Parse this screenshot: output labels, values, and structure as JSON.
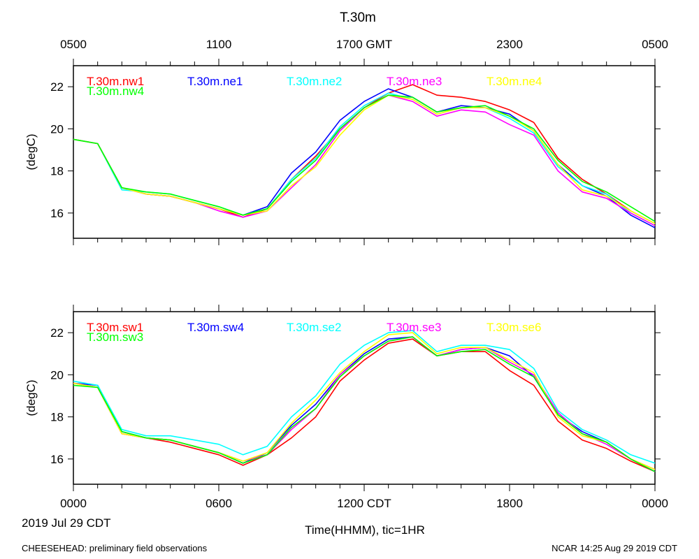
{
  "figure": {
    "title": "T.30m",
    "top_axis_ticks": [
      "0500",
      "1100",
      "1700 GMT",
      "2300",
      "0500"
    ],
    "bottom_axis_ticks": [
      "0000",
      "0600",
      "1200 CDT",
      "1800",
      "0000"
    ],
    "date_label": "2019 Jul 29 CDT",
    "xlabel": "Time(HHMM), tic=1HR",
    "footer_left": "CHEESEHEAD: preliminary field observations",
    "footer_right": "NCAR 14:25 Aug 29 2019 CDT"
  },
  "chart_data": [
    {
      "type": "line",
      "title": "T.30m",
      "xlabel": "Time(HHMM), tic=1HR",
      "ylabel": "(degC)",
      "x_units": "hours since 0000 CDT 2019 Jul 29",
      "xlim": [
        0,
        24
      ],
      "ylim": [
        14.8,
        23
      ],
      "yticks": [
        "16",
        "18",
        "20",
        "22"
      ],
      "x": [
        0,
        1,
        2,
        3,
        4,
        5,
        6,
        7,
        8,
        9,
        10,
        11,
        12,
        13,
        14,
        15,
        16,
        17,
        18,
        19,
        20,
        21,
        22,
        23,
        24
      ],
      "legend_placement": "top-left, in-plot",
      "series": [
        {
          "name": "T.30m.nw1",
          "color": "#ff0000",
          "values": [
            19.5,
            19.3,
            17.2,
            16.9,
            16.8,
            16.5,
            16.2,
            15.8,
            16.2,
            17.6,
            18.7,
            20.0,
            21.0,
            21.7,
            22.1,
            21.6,
            21.5,
            21.3,
            20.9,
            20.3,
            18.6,
            17.6,
            16.9,
            16.1,
            15.5
          ]
        },
        {
          "name": "T.30m.ne1",
          "color": "#0000ff",
          "values": [
            19.5,
            19.3,
            17.2,
            16.9,
            16.8,
            16.5,
            16.2,
            15.9,
            16.3,
            17.9,
            18.9,
            20.4,
            21.3,
            21.9,
            21.5,
            20.8,
            21.1,
            21.0,
            20.7,
            19.9,
            18.3,
            17.3,
            16.8,
            15.9,
            15.3
          ]
        },
        {
          "name": "T.30m.ne2",
          "color": "#00ffff",
          "values": [
            19.5,
            19.3,
            17.1,
            17.0,
            16.9,
            16.6,
            16.3,
            15.9,
            16.2,
            17.6,
            18.6,
            20.1,
            21.1,
            21.7,
            21.4,
            20.7,
            21.0,
            21.0,
            20.5,
            19.8,
            18.2,
            17.3,
            16.9,
            16.0,
            15.4
          ]
        },
        {
          "name": "T.30m.ne3",
          "color": "#ff00ff",
          "values": [
            19.5,
            19.3,
            17.2,
            16.9,
            16.8,
            16.5,
            16.1,
            15.8,
            16.1,
            17.2,
            18.3,
            19.9,
            21.0,
            21.6,
            21.3,
            20.6,
            20.9,
            20.8,
            20.2,
            19.7,
            18.0,
            17.0,
            16.7,
            16.0,
            15.4
          ]
        },
        {
          "name": "T.30m.ne4",
          "color": "#ffff00",
          "values": [
            19.5,
            19.3,
            17.2,
            16.9,
            16.8,
            16.5,
            16.2,
            15.9,
            16.1,
            17.3,
            18.2,
            19.7,
            20.9,
            21.6,
            21.4,
            20.7,
            21.0,
            21.0,
            20.6,
            19.9,
            18.3,
            17.1,
            16.8,
            16.1,
            15.5
          ]
        },
        {
          "name": "T.30m.nw4",
          "color": "#00ff00",
          "values": [
            19.5,
            19.3,
            17.2,
            17.0,
            16.9,
            16.6,
            16.3,
            15.9,
            16.2,
            17.5,
            18.5,
            20.0,
            21.0,
            21.6,
            21.5,
            20.8,
            21.0,
            21.1,
            20.6,
            20.0,
            18.5,
            17.5,
            17.0,
            16.3,
            15.6
          ]
        }
      ]
    },
    {
      "type": "line",
      "title": "",
      "xlabel": "Time(HHMM), tic=1HR",
      "ylabel": "(degC)",
      "x_units": "hours since 0000 CDT 2019 Jul 29",
      "xlim": [
        0,
        24
      ],
      "ylim": [
        14.8,
        23
      ],
      "yticks": [
        "16",
        "18",
        "20",
        "22"
      ],
      "x": [
        0,
        1,
        2,
        3,
        4,
        5,
        6,
        7,
        8,
        9,
        10,
        11,
        12,
        13,
        14,
        15,
        16,
        17,
        18,
        19,
        20,
        21,
        22,
        23,
        24
      ],
      "legend_placement": "top-left, in-plot",
      "series": [
        {
          "name": "T.30m.sw1",
          "color": "#ff0000",
          "values": [
            19.6,
            19.4,
            17.2,
            17.0,
            16.8,
            16.5,
            16.2,
            15.7,
            16.2,
            17.0,
            18.0,
            19.7,
            20.7,
            21.5,
            21.7,
            20.9,
            21.1,
            21.1,
            20.2,
            19.5,
            17.8,
            16.9,
            16.5,
            15.9,
            15.4
          ]
        },
        {
          "name": "T.30m.sw4",
          "color": "#0000ff",
          "values": [
            19.6,
            19.5,
            17.3,
            17.0,
            16.9,
            16.6,
            16.3,
            15.8,
            16.3,
            17.6,
            18.6,
            20.0,
            21.0,
            21.7,
            21.8,
            20.9,
            21.2,
            21.3,
            20.9,
            19.9,
            18.1,
            17.3,
            16.8,
            16.0,
            15.4
          ]
        },
        {
          "name": "T.30m.se2",
          "color": "#00ffff",
          "values": [
            19.7,
            19.5,
            17.4,
            17.1,
            17.1,
            16.9,
            16.7,
            16.2,
            16.6,
            18.0,
            19.0,
            20.5,
            21.4,
            22.0,
            22.1,
            21.1,
            21.4,
            21.4,
            21.2,
            20.3,
            18.3,
            17.4,
            16.9,
            16.2,
            15.8
          ]
        },
        {
          "name": "T.30m.se3",
          "color": "#ff00ff",
          "values": [
            19.6,
            19.4,
            17.2,
            17.0,
            16.9,
            16.6,
            16.3,
            15.9,
            16.2,
            17.4,
            18.4,
            20.0,
            20.9,
            21.6,
            21.8,
            20.9,
            21.2,
            21.3,
            20.6,
            20.0,
            18.2,
            17.2,
            16.7,
            16.0,
            15.5
          ]
        },
        {
          "name": "T.30m.se6",
          "color": "#ffff00",
          "values": [
            19.6,
            19.4,
            17.2,
            17.0,
            16.9,
            16.6,
            16.3,
            15.9,
            16.3,
            17.7,
            18.8,
            20.1,
            21.1,
            21.9,
            22.0,
            21.0,
            21.3,
            21.3,
            20.7,
            20.1,
            18.0,
            17.1,
            16.8,
            16.0,
            15.5
          ]
        },
        {
          "name": "T.30m.sw3",
          "color": "#00ff00",
          "values": [
            19.5,
            19.4,
            17.3,
            17.0,
            16.9,
            16.6,
            16.3,
            15.8,
            16.2,
            17.5,
            18.4,
            19.9,
            20.9,
            21.6,
            21.8,
            20.9,
            21.1,
            21.2,
            20.5,
            19.9,
            18.1,
            17.2,
            16.8,
            16.0,
            15.4
          ]
        }
      ]
    }
  ]
}
